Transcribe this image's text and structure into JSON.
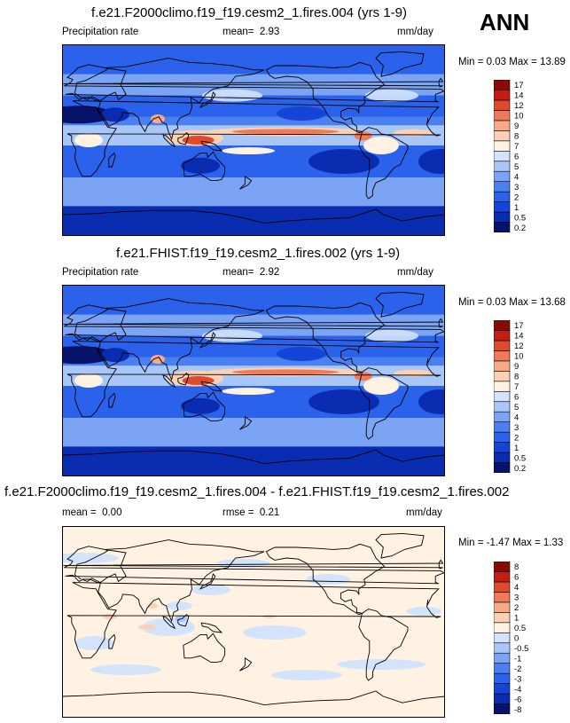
{
  "season": "ANN",
  "colors": {
    "abs_scale": [
      "#07136b",
      "#0a2cb0",
      "#1545d8",
      "#2a62ec",
      "#4a80f0",
      "#7ba4f4",
      "#a8c6f8",
      "#d2e3fb",
      "#fff2e2",
      "#fbd0b4",
      "#f6aa86",
      "#ef7a57",
      "#e04a2c",
      "#c41e12",
      "#8c0a06"
    ],
    "diff_scale": [
      "#07136b",
      "#0a2cb0",
      "#1545d8",
      "#2a62ec",
      "#4a80f0",
      "#7ba4f4",
      "#a8c6f8",
      "#d2e3fb",
      "#fff2e2",
      "#fbd0b4",
      "#f6aa86",
      "#ef7a57",
      "#e04a2c",
      "#c41e12",
      "#8c0a06"
    ],
    "coast": "#000000",
    "frame": "#000000"
  },
  "panels": [
    {
      "title": "f.e21.F2000climo.f19_f19.cesm2_1.fires.004 (yrs 1-9)",
      "left_label": "Precipitation rate",
      "mean_label": "mean=",
      "mean_value": "2.93",
      "rmse_label": "",
      "rmse_value": "",
      "units": "mm/day",
      "min_label": "Min =",
      "min_value": "0.03",
      "max_label": "Max =",
      "max_value": "13.89"
    },
    {
      "title": "f.e21.FHIST.f19_f19.cesm2_1.fires.002 (yrs 1-9)",
      "left_label": "Precipitation rate",
      "mean_label": "mean=",
      "mean_value": "2.92",
      "rmse_label": "",
      "rmse_value": "",
      "units": "mm/day",
      "min_label": "Min =",
      "min_value": "0.03",
      "max_label": "Max =",
      "max_value": "13.68"
    },
    {
      "title": "f.e21.F2000climo.f19_f19.cesm2_1.fires.004 - f.e21.FHIST.f19_f19.cesm2_1.fires.002",
      "left_label": "mean =",
      "mean_label": "",
      "mean_value": "0.00",
      "rmse_label": "rmse =",
      "rmse_value": "0.21",
      "units": "mm/day",
      "min_label": "Min =",
      "min_value": "-1.47",
      "max_label": "Max =",
      "max_value": "1.33"
    }
  ],
  "chart_data": [
    {
      "type": "heatmap",
      "title": "f.e21.F2000climo.f19_f19.cesm2_1.fires.004 (yrs 1-9)",
      "variable": "Precipitation rate",
      "units": "mm/day",
      "mean": 2.93,
      "min": 0.03,
      "max": 13.89,
      "colorbar_levels": [
        "0.2",
        "0.5",
        "1",
        "2",
        "3",
        "4",
        "5",
        "6",
        "7",
        "8",
        "9",
        "10",
        "12",
        "14",
        "17"
      ]
    },
    {
      "type": "heatmap",
      "title": "f.e21.FHIST.f19_f19.cesm2_1.fires.002 (yrs 1-9)",
      "variable": "Precipitation rate",
      "units": "mm/day",
      "mean": 2.92,
      "min": 0.03,
      "max": 13.68,
      "colorbar_levels": [
        "0.2",
        "0.5",
        "1",
        "2",
        "3",
        "4",
        "5",
        "6",
        "7",
        "8",
        "9",
        "10",
        "12",
        "14",
        "17"
      ]
    },
    {
      "type": "heatmap",
      "title": "f.e21.F2000climo.f19_f19.cesm2_1.fires.004 - f.e21.FHIST.f19_f19.cesm2_1.fires.002",
      "units": "mm/day",
      "mean": 0.0,
      "rmse": 0.21,
      "min": -1.47,
      "max": 1.33,
      "colorbar_levels": [
        "-8",
        "-6",
        "-4",
        "-3",
        "-2",
        "-1",
        "-0.5",
        "0",
        "0.5",
        "1",
        "2",
        "3",
        "4",
        "6",
        "8"
      ]
    }
  ]
}
